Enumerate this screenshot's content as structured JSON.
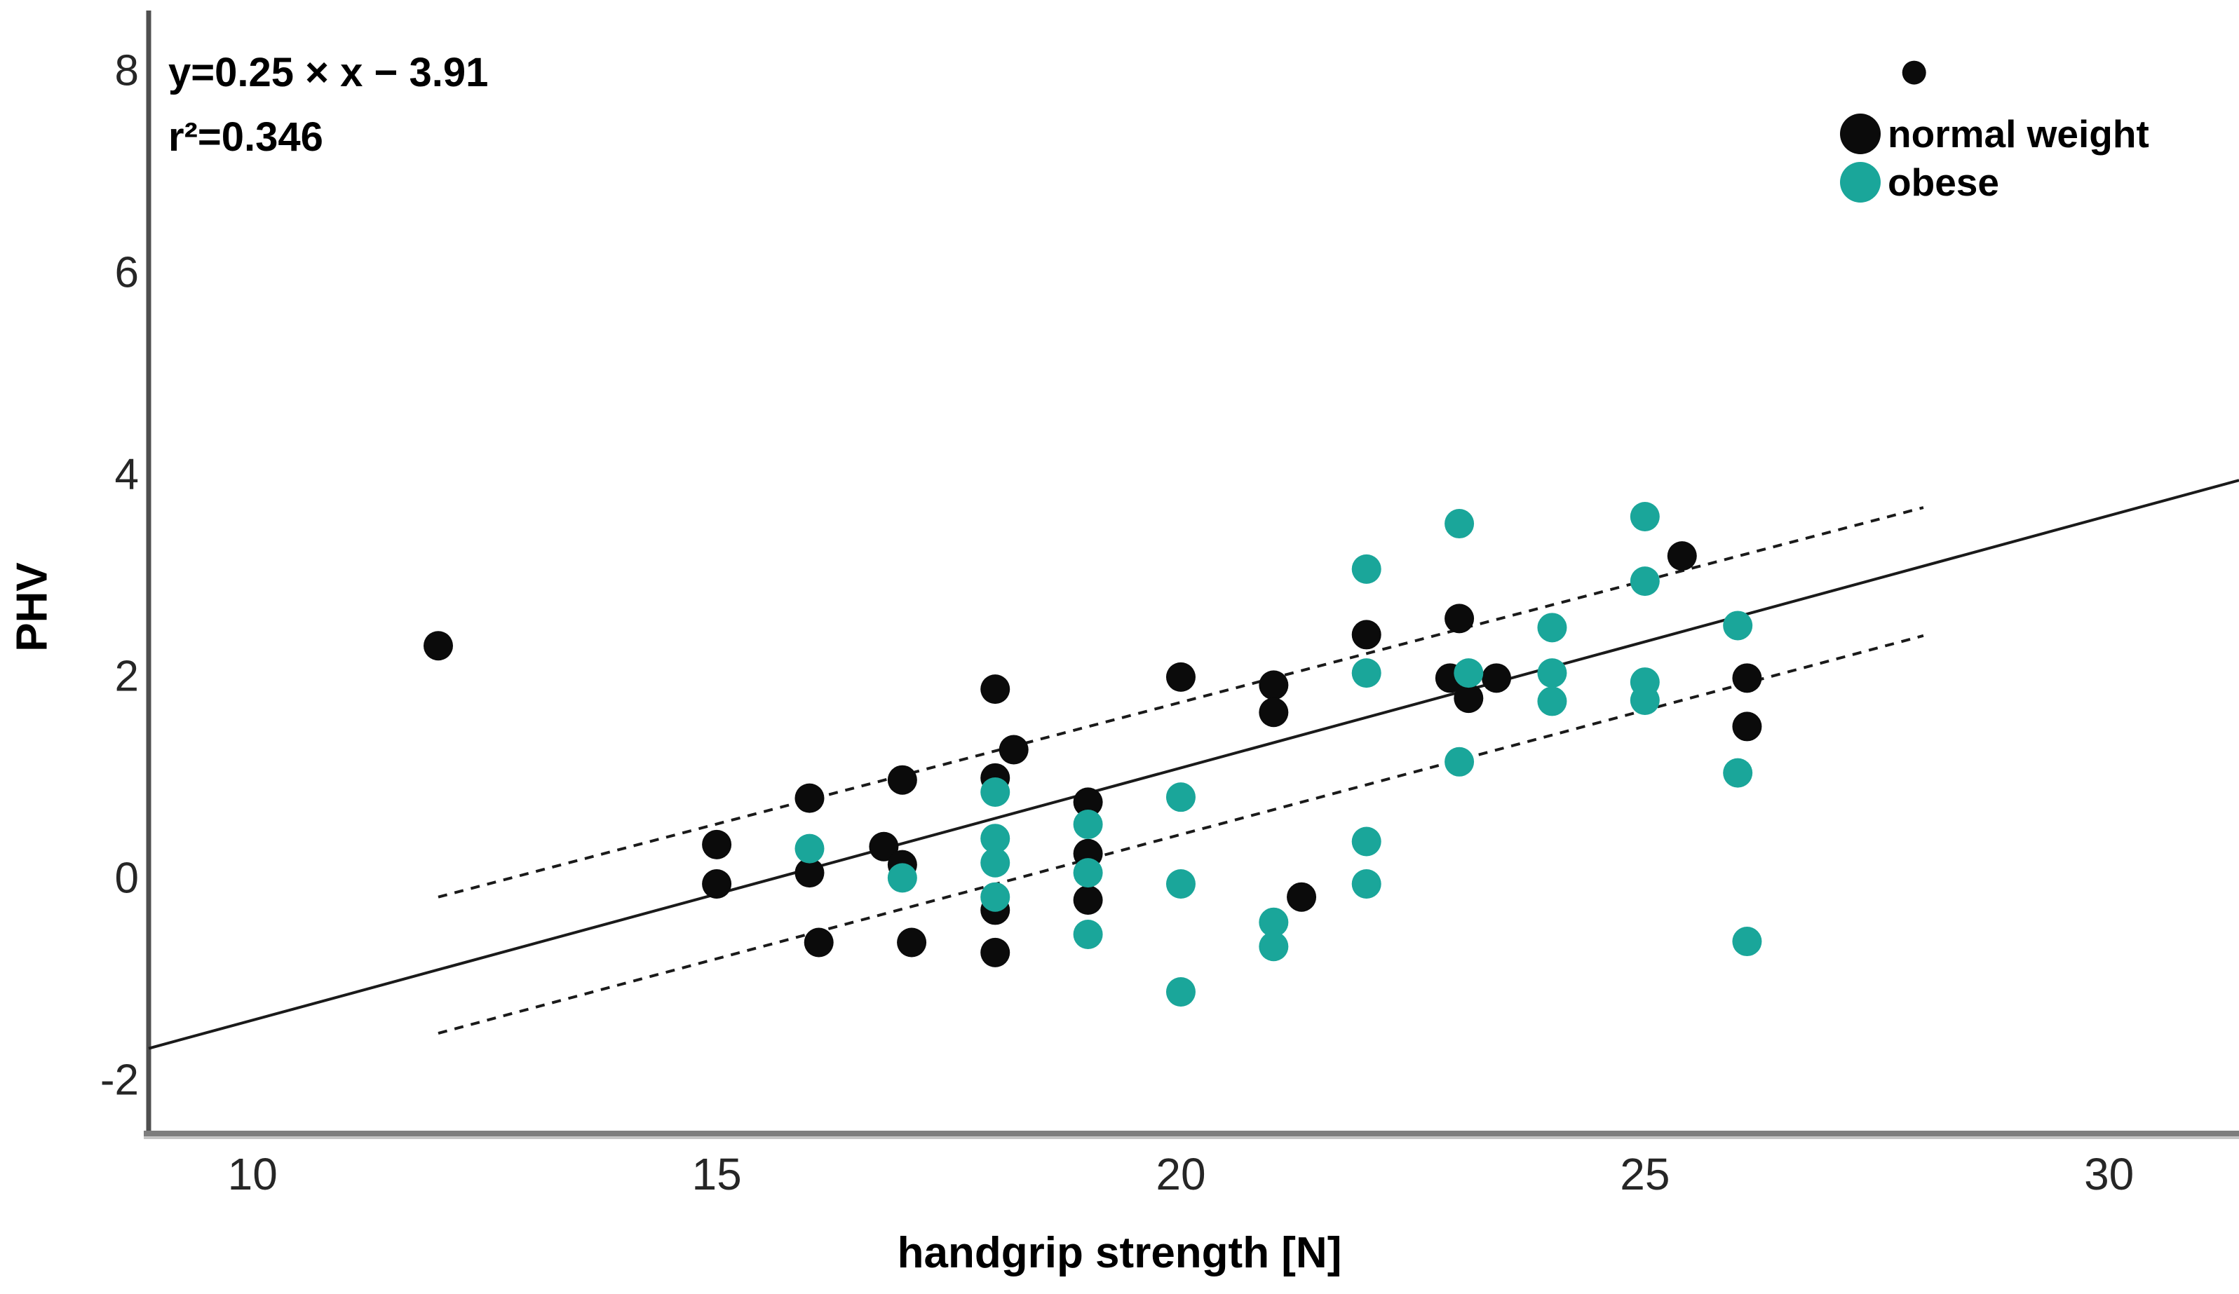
{
  "chart_data": {
    "type": "scatter",
    "title": "",
    "xlabel": "handgrip strength [N]",
    "ylabel": "PHV",
    "xlim": [
      8.88,
      31.4
    ],
    "ylim": [
      -2.54,
      8.63
    ],
    "x_ticks": [
      10,
      15,
      20,
      25,
      30
    ],
    "y_ticks": [
      -2,
      0,
      2,
      4,
      6,
      8
    ],
    "grid": false,
    "legend_position": "top-right",
    "annotation": {
      "equation": "y=0.25 × x − 3.91",
      "r_squared": "r²=0.346"
    },
    "regression_line": {
      "slope": 0.25,
      "intercept": -3.91,
      "x_range": [
        8.88,
        31.4
      ],
      "style": "solid",
      "color": "#1a1a1a"
    },
    "confidence_band": {
      "style": "dashed",
      "color": "#1a1a1a",
      "upper": {
        "x": [
          12,
          28
        ],
        "y": [
          -0.19,
          3.67
        ]
      },
      "lower": {
        "x": [
          12,
          28
        ],
        "y": [
          -1.54,
          2.4
        ]
      }
    },
    "legend": [
      {
        "label": "normal weight",
        "color": "#0b0b0b"
      },
      {
        "label": "obese",
        "color": "#1aa69a"
      }
    ],
    "marker_radius": 21,
    "series": [
      {
        "name": "normal weight",
        "color": "#0b0b0b",
        "points": [
          [
            12,
            2.3
          ],
          [
            15,
            0.33
          ],
          [
            15,
            -0.06
          ],
          [
            16,
            0.79
          ],
          [
            16,
            0.05
          ],
          [
            16.1,
            -0.64
          ],
          [
            16.8,
            0.31
          ],
          [
            17,
            0.97
          ],
          [
            17,
            0.13
          ],
          [
            17.1,
            -0.64
          ],
          [
            18,
            1.87
          ],
          [
            18.2,
            1.27
          ],
          [
            18,
            0.99
          ],
          [
            18,
            -0.32
          ],
          [
            18,
            -0.74
          ],
          [
            19,
            0.75
          ],
          [
            19,
            0.24
          ],
          [
            19,
            -0.22
          ],
          [
            20,
            1.99
          ],
          [
            21,
            1.91
          ],
          [
            21,
            1.64
          ],
          [
            21.3,
            -0.19
          ],
          [
            22,
            2.41
          ],
          [
            22.9,
            1.98
          ],
          [
            23,
            2.57
          ],
          [
            23.1,
            1.78
          ],
          [
            23.4,
            1.98
          ],
          [
            25.4,
            3.19
          ],
          [
            26.1,
            1.98
          ],
          [
            26.1,
            1.5
          ],
          [
            27.9,
            7.98,
            17
          ]
        ]
      },
      {
        "name": "obese",
        "color": "#1aa69a",
        "points": [
          [
            16,
            0.29
          ],
          [
            17,
            0.0
          ],
          [
            18,
            0.85
          ],
          [
            18,
            0.39
          ],
          [
            18,
            0.15
          ],
          [
            18,
            -0.19
          ],
          [
            19,
            0.53
          ],
          [
            19,
            0.05
          ],
          [
            19,
            -0.56
          ],
          [
            20,
            0.8
          ],
          [
            20,
            -0.06
          ],
          [
            20,
            -1.13
          ],
          [
            21,
            -0.44
          ],
          [
            21,
            -0.68
          ],
          [
            22,
            3.06
          ],
          [
            22,
            2.03
          ],
          [
            22,
            0.36
          ],
          [
            22,
            -0.06
          ],
          [
            23,
            3.51
          ],
          [
            23.1,
            2.03
          ],
          [
            23,
            1.15
          ],
          [
            24,
            2.48
          ],
          [
            24,
            2.03
          ],
          [
            24,
            1.75
          ],
          [
            25,
            3.58
          ],
          [
            25,
            2.94
          ],
          [
            25,
            1.94
          ],
          [
            25,
            1.76
          ],
          [
            26,
            2.5
          ],
          [
            26,
            1.04
          ],
          [
            26.1,
            -0.63
          ]
        ]
      }
    ]
  }
}
